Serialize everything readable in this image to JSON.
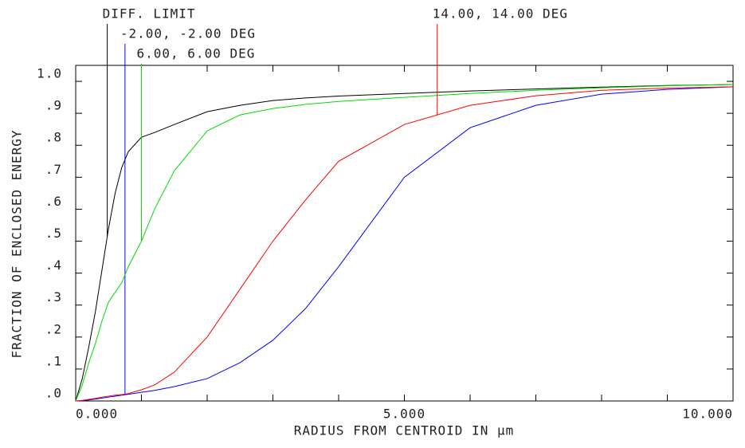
{
  "chart_data": {
    "type": "line",
    "xlabel": "RADIUS FROM CENTROID IN µm",
    "ylabel": "FRACTION OF ENCLOSED ENERGY",
    "x": [
      0,
      0.1,
      0.2,
      0.3,
      0.4,
      0.5,
      0.6,
      0.7,
      0.8,
      1.0,
      1.2,
      1.5,
      2,
      2.5,
      3,
      3.5,
      4,
      5,
      6,
      7,
      8,
      9,
      10
    ],
    "series": [
      {
        "name": "DIFF. LIMIT",
        "color": "#000000",
        "annotation_x": 0.48,
        "values": [
          0,
          0.07,
          0.17,
          0.28,
          0.41,
          0.54,
          0.65,
          0.73,
          0.78,
          0.825,
          0.84,
          0.865,
          0.905,
          0.925,
          0.94,
          0.948,
          0.954,
          0.962,
          0.97,
          0.976,
          0.982,
          0.987,
          0.99
        ]
      },
      {
        "name": "-2.00, -2.00 DEG",
        "color": "#0000ff",
        "annotation_x": 0.75,
        "values": [
          0,
          0.001,
          0.003,
          0.006,
          0.009,
          0.012,
          0.015,
          0.018,
          0.021,
          0.027,
          0.033,
          0.045,
          0.07,
          0.12,
          0.19,
          0.29,
          0.42,
          0.7,
          0.855,
          0.925,
          0.96,
          0.975,
          0.983
        ]
      },
      {
        "name": "6.00, 6.00 DEG",
        "color": "#00dd00",
        "annotation_x": 1.0,
        "values": [
          0,
          0.05,
          0.12,
          0.18,
          0.25,
          0.31,
          0.34,
          0.37,
          0.42,
          0.5,
          0.6,
          0.72,
          0.845,
          0.895,
          0.915,
          0.928,
          0.937,
          0.95,
          0.962,
          0.972,
          0.98,
          0.986,
          0.99
        ]
      },
      {
        "name": "14.00, 14.00 DEG",
        "color": "#ff0000",
        "annotation_x": 5.5,
        "values": [
          0,
          0.002,
          0.005,
          0.008,
          0.012,
          0.015,
          0.018,
          0.02,
          0.023,
          0.035,
          0.05,
          0.09,
          0.2,
          0.35,
          0.5,
          0.63,
          0.75,
          0.865,
          0.925,
          0.955,
          0.972,
          0.979,
          0.983
        ]
      }
    ],
    "xlim": [
      0,
      10
    ],
    "ylim": [
      0,
      1.05
    ],
    "xticks": [
      {
        "value": 0,
        "label": "0.000"
      },
      {
        "value": 5,
        "label": "5.000"
      },
      {
        "value": 10,
        "label": "10.000"
      }
    ],
    "xminorticks": [
      0,
      1,
      2,
      3,
      4,
      5,
      6,
      7,
      8,
      9,
      10
    ],
    "yticks": [
      {
        "value": 0,
        "label": ".0"
      },
      {
        "value": 0.1,
        "label": ".1"
      },
      {
        "value": 0.2,
        "label": ".2"
      },
      {
        "value": 0.3,
        "label": ".3"
      },
      {
        "value": 0.4,
        "label": ".4"
      },
      {
        "value": 0.5,
        "label": ".5"
      },
      {
        "value": 0.6,
        "label": ".6"
      },
      {
        "value": 0.7,
        "label": ".7"
      },
      {
        "value": 0.8,
        "label": ".8"
      },
      {
        "value": 0.9,
        "label": ".9"
      },
      {
        "value": 1.0,
        "label": "1.0"
      }
    ]
  }
}
